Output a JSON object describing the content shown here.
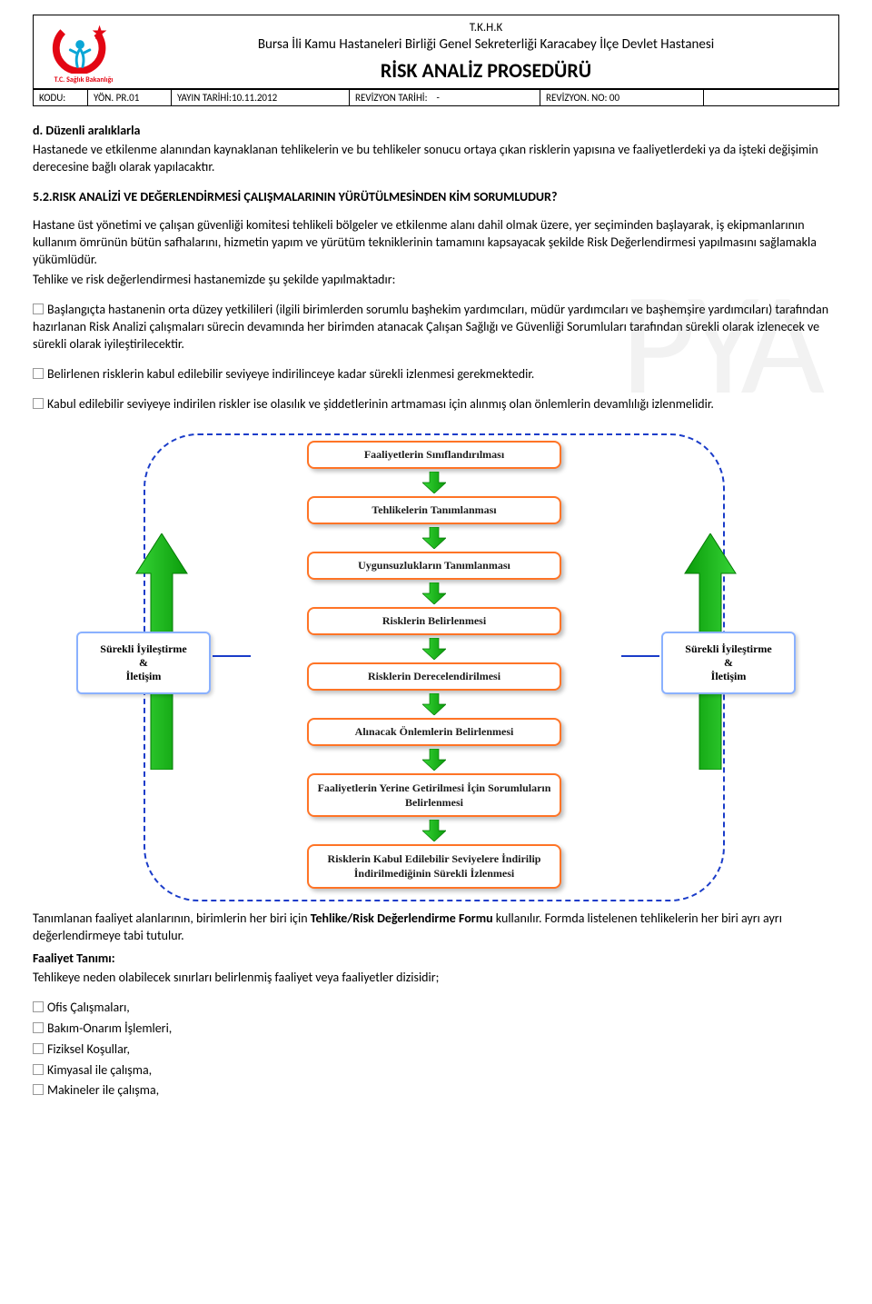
{
  "header": {
    "tkhk": "T.K.H.K",
    "org": "Bursa İli Kamu Hastaneleri Birliği Genel Sekreterliği Karacabey İlçe Devlet Hastanesi",
    "title": "RİSK ANALİZ PROSEDÜRÜ",
    "logo_sub": "T.C. Sağlık Bakanlığı",
    "meta": {
      "kodu_label": "KODU:",
      "kodu_val": "YÖN. PR.01",
      "yayin": "YAYIN TARİHİ:10.11.2012",
      "rev_tarih_label": "REVİZYON TARİHİ:",
      "rev_tarih_val": "-",
      "rev_no": "REVİZYON. NO: 00"
    }
  },
  "watermark": "PYA",
  "body": {
    "h1": "d. Düzenli aralıklarla",
    "p1": "Hastanede ve etkilenme alanından kaynaklanan tehlikelerin ve bu tehlikeler sonucu ortaya çıkan risklerin yapısına ve faaliyetlerdeki ya da işteki değişimin derecesine bağlı olarak yapılacaktır.",
    "h2": "5.2.RISK ANALİZİ VE DEĞERLENDİRMESİ ÇALIŞMALARININ YÜRÜTÜLMESİNDEN KİM SORUMLUDUR?",
    "p2": "Hastane üst yönetimi ve çalışan güvenliği komitesi tehlikeli bölgeler ve etkilenme alanı dahil olmak üzere, yer seçiminden başlayarak, iş ekipmanlarının kullanım ömrünün bütün safhalarını, hizmetin yapım ve yürütüm tekniklerinin tamamını kapsayacak şekilde Risk Değerlendirmesi yapılmasını sağlamakla yükümlüdür.",
    "p3": "Tehlike ve risk değerlendirmesi hastanemizde şu şekilde yapılmaktadır:",
    "b1": "Başlangıçta hastanenin orta düzey yetkilileri (ilgili birimlerden sorumlu başhekim yardımcıları, müdür yardımcıları ve başhemşire yardımcıları) tarafından hazırlanan Risk Analizi çalışmaları sürecin devamında her birimden atanacak Çalışan Sağlığı ve Güvenliği Sorumluları tarafından sürekli olarak izlenecek ve sürekli olarak iyileştirilecektir.",
    "b2": "Belirlenen risklerin kabul edilebilir seviyeye indirilinceye kadar sürekli izlenmesi gerekmektedir.",
    "b3": "Kabul edilebilir seviyeye indirilen riskler ise olasılık ve şiddetlerinin artmaması için alınmış olan önlemlerin devamlılığı izlenmelidir."
  },
  "flow": {
    "steps": [
      "Faaliyetlerin Sınıflandırılması",
      "Tehlikelerin Tanımlanması",
      "Uygunsuzlukların Tanımlanması",
      "Risklerin Belirlenmesi",
      "Risklerin Derecelendirilmesi",
      "Alınacak Önlemlerin Belirlenmesi",
      "Faaliyetlerin Yerine Getirilmesi İçin Sorumluların Belirlenmesi",
      "Risklerin Kabul Edilebilir Seviyelere İndirilip İndirilmediğinin Sürekli İzlenmesi"
    ],
    "side_line1": "Sürekli İyileştirme",
    "side_amp": "&",
    "side_line2": "İletişim",
    "colors": {
      "dash_border": "#1a3cc9",
      "box_border": "#ff7426",
      "side_border": "#8ab1ff",
      "arrow_fill1": "#36d436",
      "arrow_fill2": "#0a9b0a"
    }
  },
  "after": {
    "line1_a": "Tanımlanan faaliyet alanlarının, birimlerin her biri için ",
    "line1_b": "Tehlike/Risk Değerlendirme Formu",
    "line1_c": " kullanılır. Formda listelenen tehlikelerin her biri ayrı ayrı değerlendirmeye tabi tutulur.",
    "faaliyet_h": "Faaliyet Tanımı:",
    "faaliyet_p": "Tehlikeye neden olabilecek sınırları belirlenmiş faaliyet veya faaliyetler dizisidir;",
    "items": [
      "Ofis Çalışmaları,",
      "Bakım-Onarım İşlemleri,",
      "Fiziksel Koşullar,",
      "Kimyasal ile çalışma,",
      "Makineler ile çalışma,"
    ]
  }
}
